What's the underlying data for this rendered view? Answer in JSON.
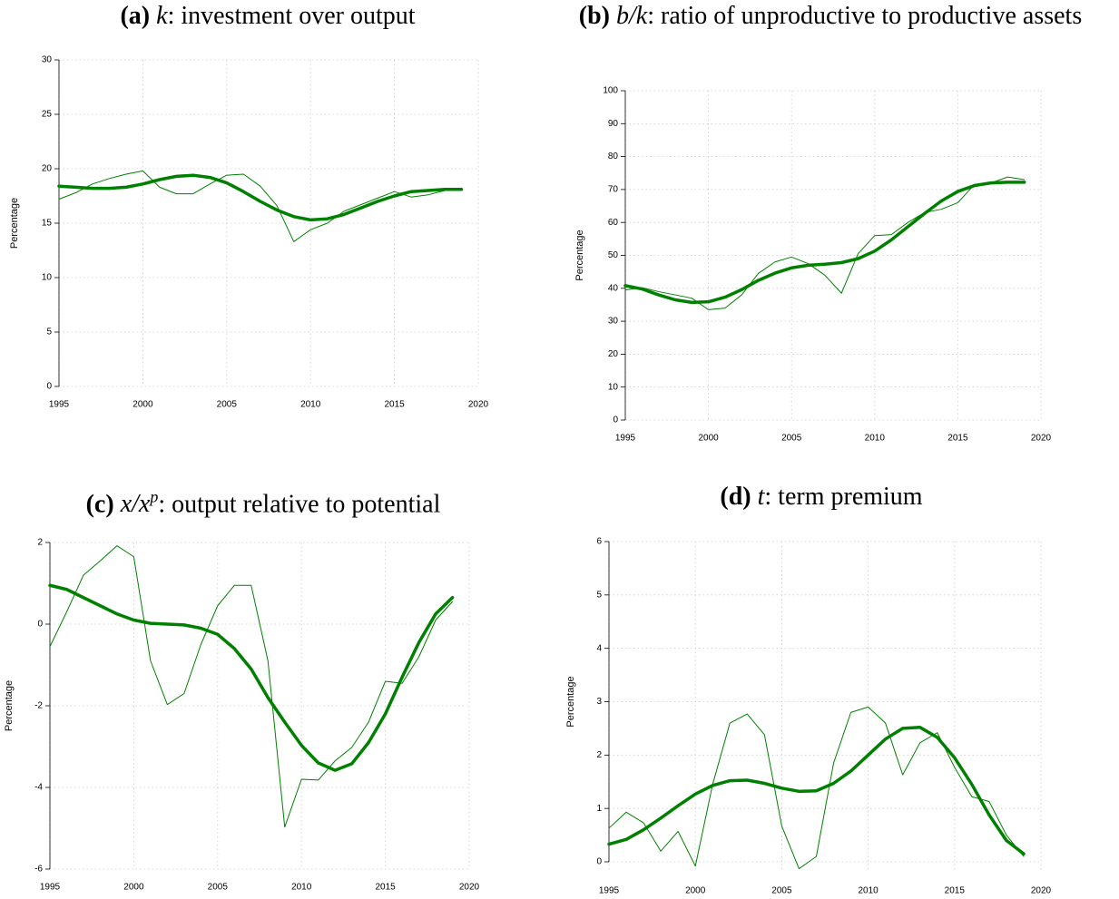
{
  "chart_data": [
    {
      "type": "line",
      "panel": "(a)",
      "variable": "k",
      "title": ": investment over output",
      "y_label": "Percentage",
      "x": [
        1995,
        1996,
        1997,
        1998,
        1999,
        2000,
        2001,
        2002,
        2003,
        2004,
        2005,
        2006,
        2007,
        2008,
        2009,
        2010,
        2011,
        2012,
        2013,
        2014,
        2015,
        2016,
        2017,
        2018,
        2019
      ],
      "xlim": [
        1995,
        2020
      ],
      "xticks": [
        1995,
        2000,
        2005,
        2010,
        2015,
        2020
      ],
      "ylim": [
        0,
        30
      ],
      "yticks": [
        0,
        5,
        10,
        15,
        20,
        25,
        30
      ],
      "grid": true,
      "series": [
        {
          "color": "#008000",
          "line_width": 1,
          "values": [
            17.2,
            17.8,
            18.6,
            19.1,
            19.5,
            19.8,
            18.3,
            17.7,
            17.7,
            18.6,
            19.4,
            19.5,
            18.4,
            16.6,
            13.3,
            14.4,
            15.0,
            16.1,
            16.7,
            17.3,
            17.9,
            17.4,
            17.6,
            18.0,
            18.1
          ]
        },
        {
          "color": "#008000",
          "line_width": 3.5,
          "values": [
            18.4,
            18.3,
            18.2,
            18.2,
            18.3,
            18.6,
            19.0,
            19.3,
            19.4,
            19.2,
            18.7,
            17.9,
            17.0,
            16.2,
            15.6,
            15.3,
            15.4,
            15.8,
            16.4,
            17.0,
            17.5,
            17.9,
            18.0,
            18.1,
            18.1
          ]
        }
      ]
    },
    {
      "type": "line",
      "panel": "(b)",
      "variable": "b/k",
      "title": ": ratio of unproductive to productive assets",
      "y_label": "Percentage",
      "x": [
        1995,
        1996,
        1997,
        1998,
        1999,
        2000,
        2001,
        2002,
        2003,
        2004,
        2005,
        2006,
        2007,
        2008,
        2009,
        2010,
        2011,
        2012,
        2013,
        2014,
        2015,
        2016,
        2017,
        2018,
        2019
      ],
      "xlim": [
        1995,
        2020
      ],
      "xticks": [
        1995,
        2000,
        2005,
        2010,
        2015,
        2020
      ],
      "ylim": [
        0,
        100
      ],
      "yticks": [
        0,
        10,
        20,
        30,
        40,
        50,
        60,
        70,
        80,
        90,
        100
      ],
      "grid": true,
      "series": [
        {
          "color": "#008000",
          "line_width": 1,
          "values": [
            39.5,
            40.2,
            39.0,
            38.0,
            37.0,
            33.5,
            34.0,
            38.0,
            44.5,
            48.0,
            49.5,
            47.5,
            44.0,
            38.5,
            50.5,
            56.0,
            56.3,
            60.0,
            63.0,
            64.0,
            66.0,
            71.5,
            72.0,
            73.8,
            73.0
          ]
        },
        {
          "color": "#008000",
          "line_width": 3.5,
          "values": [
            40.8,
            39.8,
            38.0,
            36.5,
            35.7,
            35.9,
            37.3,
            39.6,
            42.4,
            44.6,
            46.2,
            47.0,
            47.3,
            47.8,
            49.0,
            51.3,
            54.7,
            58.7,
            62.7,
            66.5,
            69.4,
            71.2,
            72.0,
            72.2,
            72.2
          ]
        }
      ]
    },
    {
      "type": "line",
      "panel": "(c)",
      "variable": "x/x",
      "superscript": "p",
      "title": ": output relative to potential",
      "y_label": "Percentage",
      "x": [
        1995,
        1996,
        1997,
        1998,
        1999,
        2000,
        2001,
        2002,
        2003,
        2004,
        2005,
        2006,
        2007,
        2008,
        2009,
        2010,
        2011,
        2012,
        2013,
        2014,
        2015,
        2016,
        2017,
        2018,
        2019
      ],
      "xlim": [
        1995,
        2020
      ],
      "xticks": [
        1995,
        2000,
        2005,
        2010,
        2015,
        2020
      ],
      "ylim": [
        -6,
        2
      ],
      "yticks": [
        -6,
        -4,
        -2,
        0,
        2
      ],
      "grid": true,
      "series": [
        {
          "color": "#008000",
          "line_width": 1,
          "values": [
            -0.55,
            0.3,
            1.2,
            1.55,
            1.92,
            1.65,
            -0.9,
            -1.97,
            -1.7,
            -0.5,
            0.45,
            0.95,
            0.95,
            -0.9,
            -4.97,
            -3.8,
            -3.82,
            -3.35,
            -3.02,
            -2.4,
            -1.4,
            -1.45,
            -0.8,
            0.1,
            0.55
          ]
        },
        {
          "color": "#008000",
          "line_width": 3.5,
          "values": [
            0.95,
            0.85,
            0.65,
            0.45,
            0.25,
            0.1,
            0.02,
            0.0,
            -0.02,
            -0.1,
            -0.25,
            -0.6,
            -1.1,
            -1.8,
            -2.4,
            -2.97,
            -3.4,
            -3.58,
            -3.42,
            -2.9,
            -2.2,
            -1.3,
            -0.45,
            0.25,
            0.65
          ]
        }
      ]
    },
    {
      "type": "line",
      "panel": "(d)",
      "variable": "t",
      "title": ": term premium",
      "y_label": "Percentage",
      "x": [
        1995,
        1996,
        1997,
        1998,
        1999,
        2000,
        2001,
        2002,
        2003,
        2004,
        2005,
        2006,
        2007,
        2008,
        2009,
        2010,
        2011,
        2012,
        2013,
        2014,
        2015,
        2016,
        2017,
        2018,
        2019
      ],
      "xlim": [
        1995,
        2020
      ],
      "xticks": [
        1995,
        2000,
        2005,
        2010,
        2015,
        2020
      ],
      "ylim": [
        -0.2,
        6
      ],
      "yticks": [
        0,
        1,
        2,
        3,
        4,
        5,
        6
      ],
      "grid": true,
      "series": [
        {
          "color": "#008000",
          "line_width": 1,
          "values": [
            0.63,
            0.93,
            0.73,
            0.2,
            0.57,
            -0.08,
            1.45,
            2.6,
            2.77,
            2.38,
            0.67,
            -0.13,
            0.1,
            1.85,
            2.8,
            2.9,
            2.6,
            1.63,
            2.23,
            2.42,
            1.77,
            1.22,
            1.13,
            0.5,
            0.1
          ]
        },
        {
          "color": "#008000",
          "line_width": 3.5,
          "values": [
            0.33,
            0.42,
            0.6,
            0.82,
            1.05,
            1.27,
            1.43,
            1.52,
            1.53,
            1.47,
            1.38,
            1.32,
            1.33,
            1.47,
            1.7,
            2.0,
            2.3,
            2.5,
            2.52,
            2.33,
            1.95,
            1.45,
            0.88,
            0.4,
            0.15
          ]
        }
      ]
    }
  ]
}
